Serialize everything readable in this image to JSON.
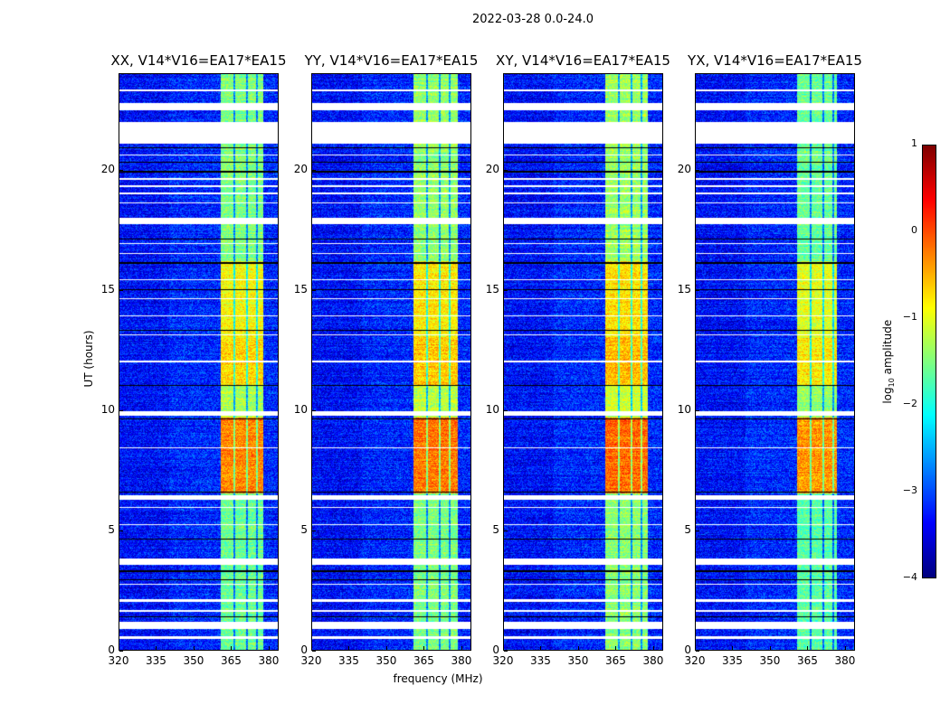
{
  "chart_data": {
    "type": "heatmap",
    "title": "2022-03-28 0.0-24.0",
    "xlabel": "frequency (MHz)",
    "ylabel": "UT (hours)",
    "xlim": [
      320,
      384
    ],
    "ylim": [
      0,
      24
    ],
    "xticks": [
      "320",
      "335",
      "350",
      "365",
      "380"
    ],
    "xtick_values": [
      320,
      335,
      350,
      365,
      380
    ],
    "yticks": [
      "0",
      "5",
      "10",
      "15",
      "20"
    ],
    "ytick_values": [
      0,
      5,
      10,
      15,
      20
    ],
    "colorbar": {
      "label": "log₁₀ amplitude",
      "range": [
        -4,
        1
      ],
      "ticks": [
        "1",
        "0",
        "−1",
        "−2",
        "−3",
        "−4"
      ],
      "tick_values": [
        1,
        0,
        -1,
        -2,
        -3,
        -4
      ],
      "colormap": "jet"
    },
    "panels": [
      {
        "title": "XX, V14*V16=EA17*EA15",
        "band_mhz": [
          361,
          378
        ],
        "band_gain": 0.0
      },
      {
        "title": "YY, V14*V16=EA17*EA15",
        "band_mhz": [
          361,
          379
        ],
        "band_gain": 0.1
      },
      {
        "title": "XY, V14*V16=EA17*EA15",
        "band_mhz": [
          361,
          378
        ],
        "band_gain": 0.15
      },
      {
        "title": "YX, V14*V16=EA17*EA15",
        "band_mhz": [
          361,
          377
        ],
        "band_gain": -0.1
      }
    ],
    "background_log_amp": -3.2,
    "band_profile_hours": [
      {
        "from": 0,
        "to": 6.5,
        "log_amp": -1.6
      },
      {
        "from": 6.5,
        "to": 9.7,
        "log_amp": -0.3
      },
      {
        "from": 9.7,
        "to": 11,
        "log_amp": -1.3
      },
      {
        "from": 11,
        "to": 13,
        "log_amp": -0.7
      },
      {
        "from": 13,
        "to": 16.2,
        "log_amp": -0.9
      },
      {
        "from": 16.2,
        "to": 24,
        "log_amp": -1.5
      }
    ],
    "flagged_hours": [
      [
        22.5,
        22.8
      ],
      [
        21.1,
        22.0
      ],
      [
        17.75,
        18.0
      ],
      [
        9.75,
        9.95
      ],
      [
        6.27,
        6.45
      ],
      [
        3.55,
        3.8
      ],
      [
        0.85,
        1.15
      ],
      [
        0.45,
        0.55
      ],
      [
        23.3,
        23.35
      ],
      [
        20.6,
        20.65
      ],
      [
        19.6,
        19.65
      ],
      [
        19.3,
        19.35
      ],
      [
        19.0,
        19.05
      ],
      [
        18.6,
        18.65
      ],
      [
        16.9,
        16.95
      ],
      [
        16.5,
        16.55
      ],
      [
        15.4,
        15.45
      ],
      [
        14.6,
        14.65
      ],
      [
        13.9,
        13.95
      ],
      [
        13.1,
        13.15
      ],
      [
        12.0,
        12.05
      ],
      [
        8.4,
        8.45
      ],
      [
        5.9,
        5.95
      ],
      [
        5.2,
        5.25
      ],
      [
        2.7,
        2.75
      ],
      [
        2.0,
        2.1
      ],
      [
        1.6,
        1.65
      ]
    ],
    "dropout_hours": [
      [
        20.9,
        20.95
      ],
      [
        20.3,
        20.35
      ],
      [
        19.9,
        19.95
      ],
      [
        17.1,
        17.15
      ],
      [
        16.1,
        16.15
      ],
      [
        15.0,
        15.05
      ],
      [
        13.3,
        13.35
      ],
      [
        11.0,
        11.05
      ],
      [
        9.6,
        9.65
      ],
      [
        6.55,
        6.6
      ],
      [
        4.6,
        4.65
      ],
      [
        3.25,
        3.3
      ],
      [
        2.9,
        2.95
      ],
      [
        1.35,
        1.4
      ]
    ]
  }
}
